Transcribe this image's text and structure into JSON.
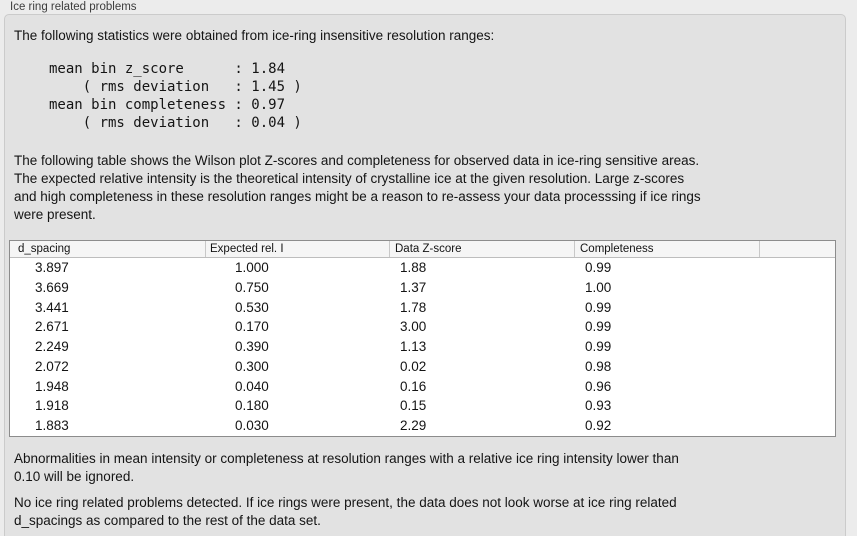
{
  "colors": {
    "page-bg": "#ececec",
    "box-bg": "#e2e2e2",
    "box-border": "#cbcbcb",
    "label-color": "#3d3d3d",
    "text-color": "#141414",
    "table-border": "#8c8c8c",
    "header-bg": "#f5f5f5",
    "header-sep": "#c8c8c8",
    "header-bottom": "#bdbdbd",
    "row-bg": "#ffffff"
  },
  "panel": {
    "title": "Ice ring related problems"
  },
  "intro": {
    "text": "The following statistics were obtained from ice-ring insensitive resolution ranges:"
  },
  "stats": {
    "lines": [
      "mean bin z_score      : 1.84",
      "    ( rms deviation   : 1.45 )",
      "mean bin completeness : 0.97",
      "    ( rms deviation   : 0.04 )"
    ],
    "mean_bin_z_score": "1.84",
    "z_score_rms_deviation": "1.45",
    "mean_bin_completeness": "0.97",
    "completeness_rms_deviation": "0.04"
  },
  "description": {
    "lines": [
      "The following table shows the Wilson plot Z-scores and completeness for observed data in ice-ring sensitive areas.",
      "The expected relative intensity is the theoretical intensity of crystalline ice at the given resolution. Large z-scores",
      "and high completeness in these resolution ranges might be a reason to re-assess your data processsing if ice rings",
      "were present."
    ]
  },
  "table": {
    "columns": [
      "d_spacing",
      "Expected rel. I",
      "Data Z-score",
      "Completeness",
      ""
    ],
    "rows": [
      [
        "3.897",
        "1.000",
        "1.88",
        "0.99"
      ],
      [
        "3.669",
        "0.750",
        "1.37",
        "1.00"
      ],
      [
        "3.441",
        "0.530",
        "1.78",
        "0.99"
      ],
      [
        "2.671",
        "0.170",
        "3.00",
        "0.99"
      ],
      [
        "2.249",
        "0.390",
        "1.13",
        "0.99"
      ],
      [
        "2.072",
        "0.300",
        "0.02",
        "0.98"
      ],
      [
        "1.948",
        "0.040",
        "0.16",
        "0.96"
      ],
      [
        "1.918",
        "0.180",
        "0.15",
        "0.93"
      ],
      [
        "1.883",
        "0.030",
        "2.29",
        "0.92"
      ]
    ]
  },
  "notes": {
    "ignore_rule": {
      "lines": [
        "Abnormalities in mean intensity or completeness at resolution ranges with a relative ice ring intensity lower than",
        "0.10 will be ignored."
      ]
    },
    "conclusion": {
      "lines": [
        "No ice ring related problems detected. If ice rings were present, the data does not look worse at ice ring related",
        "d_spacings as compared to the rest of the data set."
      ]
    }
  }
}
